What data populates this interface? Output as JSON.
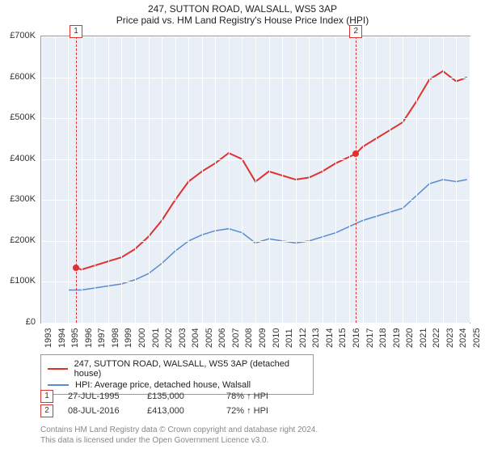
{
  "title": "247, SUTTON ROAD, WALSALL, WS5 3AP",
  "subtitle": "Price paid vs. HM Land Registry's House Price Index (HPI)",
  "chart": {
    "type": "line",
    "background_color": "#e9eff6",
    "grid_color": "#ffffff",
    "border_color": "#999999",
    "axis_font_size": 11,
    "yaxis": {
      "min": 0,
      "max": 700000,
      "tick_step": 100000,
      "ticks": [
        "£0",
        "£100K",
        "£200K",
        "£300K",
        "£400K",
        "£500K",
        "£600K",
        "£700K"
      ]
    },
    "xaxis": {
      "min": 1993,
      "max": 2025,
      "ticks": [
        "1993",
        "1994",
        "1995",
        "1996",
        "1997",
        "1998",
        "1999",
        "2000",
        "2001",
        "2002",
        "2003",
        "2004",
        "2005",
        "2006",
        "2007",
        "2008",
        "2009",
        "2010",
        "2011",
        "2012",
        "2013",
        "2014",
        "2015",
        "2016",
        "2017",
        "2018",
        "2019",
        "2020",
        "2021",
        "2022",
        "2023",
        "2024",
        "2025"
      ]
    },
    "series": [
      {
        "name": "247, SUTTON ROAD, WALSALL, WS5 3AP (detached house)",
        "color": "#e03131",
        "width": 2,
        "points": [
          [
            1995.6,
            135000
          ],
          [
            1996,
            130000
          ],
          [
            1997,
            140000
          ],
          [
            1998,
            150000
          ],
          [
            1999,
            160000
          ],
          [
            2000,
            180000
          ],
          [
            2001,
            210000
          ],
          [
            2002,
            250000
          ],
          [
            2003,
            300000
          ],
          [
            2004,
            345000
          ],
          [
            2005,
            370000
          ],
          [
            2006,
            390000
          ],
          [
            2007,
            415000
          ],
          [
            2008,
            400000
          ],
          [
            2009,
            345000
          ],
          [
            2010,
            370000
          ],
          [
            2011,
            360000
          ],
          [
            2012,
            350000
          ],
          [
            2013,
            355000
          ],
          [
            2014,
            370000
          ],
          [
            2015,
            390000
          ],
          [
            2016.5,
            413000
          ],
          [
            2017,
            430000
          ],
          [
            2018,
            450000
          ],
          [
            2019,
            470000
          ],
          [
            2020,
            490000
          ],
          [
            2021,
            540000
          ],
          [
            2022,
            595000
          ],
          [
            2023,
            615000
          ],
          [
            2024,
            590000
          ],
          [
            2024.8,
            600000
          ]
        ]
      },
      {
        "name": "HPI: Average price, detached house, Walsall",
        "color": "#5b8bd0",
        "width": 1.5,
        "points": [
          [
            1995,
            80000
          ],
          [
            1996,
            80000
          ],
          [
            1997,
            85000
          ],
          [
            1998,
            90000
          ],
          [
            1999,
            95000
          ],
          [
            2000,
            105000
          ],
          [
            2001,
            120000
          ],
          [
            2002,
            145000
          ],
          [
            2003,
            175000
          ],
          [
            2004,
            200000
          ],
          [
            2005,
            215000
          ],
          [
            2006,
            225000
          ],
          [
            2007,
            230000
          ],
          [
            2008,
            220000
          ],
          [
            2009,
            195000
          ],
          [
            2010,
            205000
          ],
          [
            2011,
            200000
          ],
          [
            2012,
            195000
          ],
          [
            2013,
            200000
          ],
          [
            2014,
            210000
          ],
          [
            2015,
            220000
          ],
          [
            2016,
            235000
          ],
          [
            2017,
            250000
          ],
          [
            2018,
            260000
          ],
          [
            2019,
            270000
          ],
          [
            2020,
            280000
          ],
          [
            2021,
            310000
          ],
          [
            2022,
            340000
          ],
          [
            2023,
            350000
          ],
          [
            2024,
            345000
          ],
          [
            2024.8,
            350000
          ]
        ]
      }
    ],
    "markers": [
      {
        "id": "1",
        "x": 1995.6,
        "y": 135000
      },
      {
        "id": "2",
        "x": 2016.5,
        "y": 413000
      }
    ]
  },
  "legend": {
    "series1_label": "247, SUTTON ROAD, WALSALL, WS5 3AP (detached house)",
    "series2_label": "HPI: Average price, detached house, Walsall"
  },
  "events": [
    {
      "id": "1",
      "date": "27-JUL-1995",
      "price": "£135,000",
      "hpi": "78% ↑ HPI"
    },
    {
      "id": "2",
      "date": "08-JUL-2016",
      "price": "£413,000",
      "hpi": "72% ↑ HPI"
    }
  ],
  "attribution": {
    "line1": "Contains HM Land Registry data © Crown copyright and database right 2024.",
    "line2": "This data is licensed under the Open Government Licence v3.0."
  }
}
